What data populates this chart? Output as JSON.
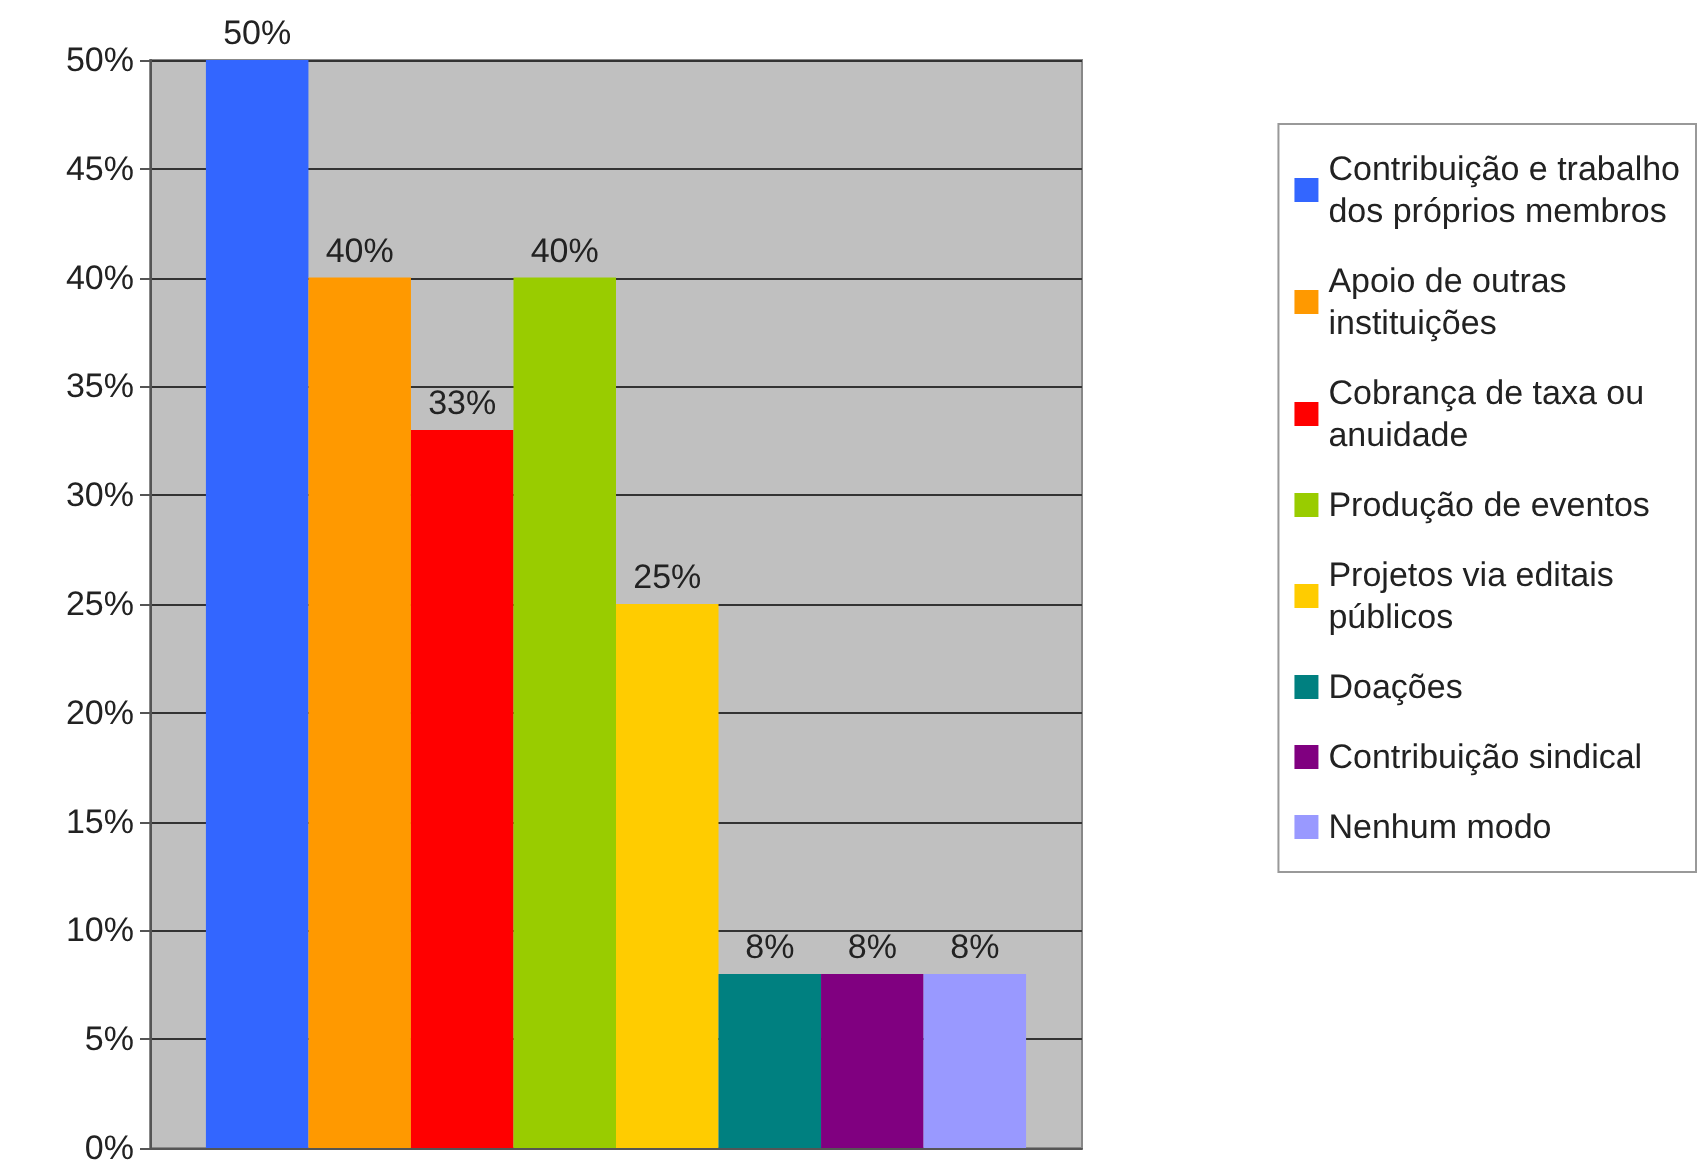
{
  "chart_data": {
    "type": "bar",
    "categories": [
      null
    ],
    "series": [
      {
        "name": "Contribuição e trabalho dos próprios membros",
        "color": "#3366ff",
        "values": [
          50
        ],
        "value_labels": [
          "50%"
        ]
      },
      {
        "name": "Apoio de outras instituições",
        "color": "#ff9900",
        "values": [
          40
        ],
        "value_labels": [
          "40%"
        ]
      },
      {
        "name": "Cobrança de taxa ou anuidade",
        "color": "#ff0000",
        "values": [
          33
        ],
        "value_labels": [
          "33%"
        ]
      },
      {
        "name": "Produção de eventos",
        "color": "#99cc00",
        "values": [
          40
        ],
        "value_labels": [
          "40%"
        ]
      },
      {
        "name": "Projetos via editais públicos",
        "color": "#ffcc00",
        "values": [
          25
        ],
        "value_labels": [
          "25%"
        ]
      },
      {
        "name": "Doações",
        "color": "#008080",
        "values": [
          8
        ],
        "value_labels": [
          "8%"
        ]
      },
      {
        "name": "Contribuição sindical",
        "color": "#800080",
        "values": [
          8
        ],
        "value_labels": [
          "8%"
        ]
      },
      {
        "name": "Nenhum modo",
        "color": "#9999ff",
        "values": [
          8
        ],
        "value_labels": [
          "8%"
        ]
      }
    ],
    "ylim": [
      0,
      50
    ],
    "yticks": [
      {
        "value": 0,
        "label": "0%"
      },
      {
        "value": 5,
        "label": "5%"
      },
      {
        "value": 10,
        "label": "10%"
      },
      {
        "value": 15,
        "label": "15%"
      },
      {
        "value": 20,
        "label": "20%"
      },
      {
        "value": 25,
        "label": "25%"
      },
      {
        "value": 30,
        "label": "30%"
      },
      {
        "value": 35,
        "label": "35%"
      },
      {
        "value": 40,
        "label": "40%"
      },
      {
        "value": 45,
        "label": "45%"
      },
      {
        "value": 50,
        "label": "50%"
      }
    ],
    "grid": "y",
    "legend": "right"
  }
}
